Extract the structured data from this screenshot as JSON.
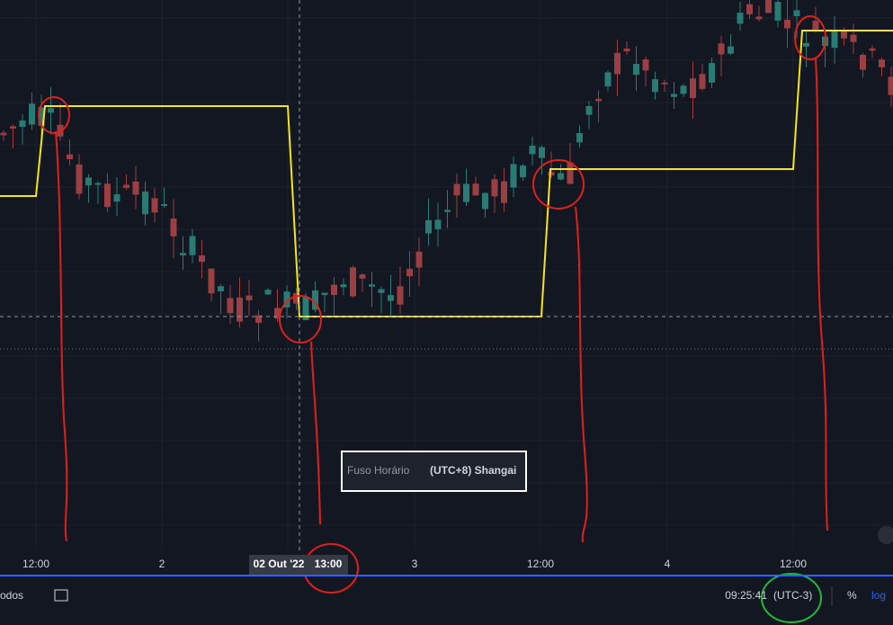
{
  "x_axis": {
    "labels": [
      "12:00",
      "2",
      "02 Out '22",
      "13:00",
      "3",
      "12:00",
      "4",
      "12:00"
    ]
  },
  "tooltip": {
    "label": "Fuso Horário",
    "value": "(UTC+8) Shangai"
  },
  "status_bar": {
    "left": "odos",
    "time": "09:25:41",
    "timezone": "(UTC-3)",
    "percent": "%",
    "log": "log"
  }
}
